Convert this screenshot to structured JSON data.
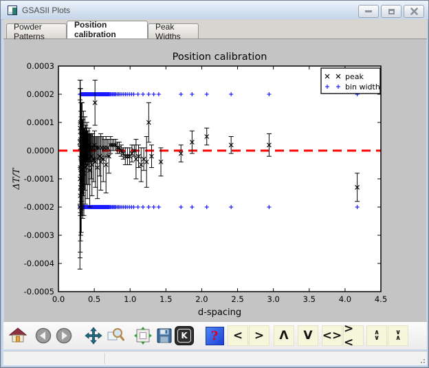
{
  "titlebar": {
    "title": "GSASII Plots",
    "icon": "gsasii-plot-icon",
    "buttons": [
      {
        "name": "minimize"
      },
      {
        "name": "maximize"
      },
      {
        "name": "close"
      }
    ]
  },
  "tabs": [
    {
      "label": "Powder Patterns",
      "active": false
    },
    {
      "label": "Position calibration",
      "active": true
    },
    {
      "label": "Peak Widths",
      "active": false
    }
  ],
  "colors": {
    "figure_bg": "#c4c4c4",
    "plot_bg": "#ffffff",
    "zero_line_red": "#ff0000",
    "bin_width_blue": "#1a1aff",
    "peak_black": "#000000",
    "arrow_button_bg": "#f6f6da"
  },
  "chart_data": {
    "type": "scatter",
    "title": "Position calibration",
    "xlabel": "d-spacing",
    "ylabel": "ΔT/T",
    "xlim": [
      0.0,
      4.5
    ],
    "ylim": [
      -0.0005,
      0.0003
    ],
    "x_ticks": [
      "0.0",
      "0.5",
      "1.0",
      "1.5",
      "2.0",
      "2.5",
      "3.0",
      "3.5",
      "4.0",
      "4.5"
    ],
    "y_ticks": [
      "0.0003",
      "0.0002",
      "0.0001",
      "0.0000",
      "-0.0001",
      "-0.0002",
      "-0.0003",
      "-0.0004",
      "-0.0005"
    ],
    "grid": false,
    "legend": {
      "position": "upper right",
      "entries": [
        {
          "label": "peak",
          "marker": "x",
          "color": "#000000"
        },
        {
          "label": "bin width",
          "marker": "+",
          "color": "#1a1aff"
        }
      ]
    },
    "zero_line": {
      "y": 0.0,
      "color": "#ff0000",
      "style": "dashed",
      "width": 3
    },
    "series": [
      {
        "name": "peak",
        "marker": "x",
        "color": "#000000",
        "format": "[d-spacing, delta_T_over_T, error]",
        "points": [
          [
            0.3,
            -0.0002,
            0.00022
          ],
          [
            0.301,
            3e-05,
            0.00022
          ],
          [
            0.302,
            -0.0001,
            0.00028
          ],
          [
            0.303,
            8e-05,
            0.00014
          ],
          [
            0.304,
            -0.00016,
            0.0002
          ],
          [
            0.305,
            1e-05,
            0.00024
          ],
          [
            0.306,
            -6e-05,
            0.00016
          ],
          [
            0.307,
            0.0001,
            0.00012
          ],
          [
            0.308,
            -0.00013,
            0.00019
          ],
          [
            0.31,
            4e-05,
            0.00018
          ],
          [
            0.312,
            -8e-05,
            0.00022
          ],
          [
            0.314,
            7e-05,
            0.0001
          ],
          [
            0.316,
            -3e-05,
            0.00015
          ],
          [
            0.318,
            -0.00011,
            0.00018
          ],
          [
            0.32,
            5e-05,
            0.00012
          ],
          [
            0.322,
            -5e-05,
            0.00016
          ],
          [
            0.325,
            2e-05,
            9e-05
          ],
          [
            0.328,
            -9e-05,
            0.00014
          ],
          [
            0.331,
            6e-05,
            0.00011
          ],
          [
            0.334,
            -2e-05,
            0.00013
          ],
          [
            0.338,
            -7e-05,
            0.00017
          ],
          [
            0.342,
            3e-05,
            8e-05
          ],
          [
            0.346,
            -4e-05,
            0.00012
          ],
          [
            0.35,
            5e-05,
            9e-05
          ],
          [
            0.355,
            -8e-05,
            0.00015
          ],
          [
            0.36,
            1e-05,
            7e-05
          ],
          [
            0.365,
            -3e-05,
            0.00011
          ],
          [
            0.37,
            4e-05,
            8e-05
          ],
          [
            0.376,
            -6e-05,
            0.00013
          ],
          [
            0.382,
            2e-05,
            7e-05
          ],
          [
            0.389,
            -2e-05,
            0.0001
          ],
          [
            0.396,
            3e-05,
            7e-05
          ],
          [
            0.403,
            -5e-05,
            0.00012
          ],
          [
            0.411,
            1e-05,
            6e-05
          ],
          [
            0.419,
            -3e-05,
            9e-05
          ],
          [
            0.428,
            2e-05,
            6e-05
          ],
          [
            0.437,
            -7e-05,
            0.00013
          ],
          [
            0.447,
            1e-05,
            5e-05
          ],
          [
            0.457,
            -2e-05,
            8e-05
          ],
          [
            0.468,
            -5e-05,
            0.00011
          ],
          [
            0.479,
            1e-05,
            5e-05
          ],
          [
            0.491,
            -3e-05,
            8e-05
          ],
          [
            0.503,
            2e-05,
            5e-05
          ],
          [
            0.51,
            0.00017,
            8e-05
          ],
          [
            0.516,
            -4e-05,
            9e-05
          ],
          [
            0.53,
            1e-05,
            4e-05
          ],
          [
            0.544,
            -6e-05,
            0.00011
          ],
          [
            0.559,
            1e-05,
            4e-05
          ],
          [
            0.575,
            -2e-05,
            7e-05
          ],
          [
            0.591,
            -4e-05,
            0.0001
          ],
          [
            0.608,
            1e-05,
            4e-05
          ],
          [
            0.626,
            -3e-05,
            8e-05
          ],
          [
            0.645,
            1e-05,
            3e-05
          ],
          [
            0.664,
            -5e-05,
            0.0001
          ],
          [
            0.684,
            1e-05,
            3e-05
          ],
          [
            0.705,
            -2e-05,
            6e-05
          ],
          [
            0.727,
            2e-05,
            3e-05
          ],
          [
            0.75,
            2e-05,
            2e-05
          ],
          [
            0.773,
            2e-05,
            2e-05
          ],
          [
            0.798,
            2e-05,
            2e-05
          ],
          [
            0.823,
            1e-05,
            2e-05
          ],
          [
            0.849,
            1e-05,
            2e-05
          ],
          [
            0.876,
            0.0,
            2e-05
          ],
          [
            0.904,
            -1e-05,
            2e-05
          ],
          [
            0.933,
            -2e-05,
            3e-05
          ],
          [
            0.963,
            -2e-05,
            3e-05
          ],
          [
            0.994,
            -2e-05,
            3e-05
          ],
          [
            1.026,
            -1e-05,
            3e-05
          ],
          [
            1.059,
            0.0,
            2e-05
          ],
          [
            1.083,
            -3e-05,
            7e-05
          ],
          [
            1.118,
            -2e-05,
            4e-05
          ],
          [
            1.154,
            -5e-05,
            6e-05
          ],
          [
            1.191,
            -3e-05,
            4e-05
          ],
          [
            1.23,
            -4e-05,
            9e-05
          ],
          [
            1.26,
            0.0001,
            7e-05
          ],
          [
            1.3,
            -2e-05,
            4e-05
          ],
          [
            1.43,
            -4e-05,
            5e-05
          ],
          [
            1.71,
            -1e-05,
            3e-05
          ],
          [
            1.865,
            3e-05,
            4e-05
          ],
          [
            2.07,
            5e-05,
            3e-05
          ],
          [
            2.41,
            2e-05,
            3e-05
          ],
          [
            2.94,
            2e-05,
            4e-05
          ],
          [
            4.17,
            -0.00013,
            5e-05
          ]
        ]
      },
      {
        "name": "bin width",
        "marker": "+",
        "color": "#1a1aff",
        "y_levels": [
          0.0002,
          -0.0002
        ],
        "x_dense": {
          "start": 0.3,
          "ratio": 1.011,
          "count": 80
        },
        "x_sparse": [
          0.725,
          0.74,
          0.755,
          0.77,
          0.785,
          0.8,
          0.82,
          0.84,
          0.86,
          0.885,
          0.91,
          0.935,
          0.96,
          0.99,
          1.02,
          1.05,
          1.11,
          1.18,
          1.26,
          1.33,
          1.4,
          1.71,
          1.865,
          2.07,
          2.41,
          2.94,
          4.17
        ]
      }
    ]
  },
  "toolbar": {
    "buttons": [
      {
        "name": "home",
        "icon": "home-icon"
      },
      {
        "name": "back",
        "icon": "back-icon"
      },
      {
        "name": "forward",
        "icon": "forward-icon"
      },
      {
        "name": "pan",
        "icon": "pan-icon"
      },
      {
        "name": "zoom-rect",
        "icon": "zoom-rect-icon"
      },
      {
        "name": "subplots",
        "icon": "subplots-icon"
      },
      {
        "name": "save",
        "icon": "save-icon"
      },
      {
        "name": "key-press",
        "icon": "key-k-icon",
        "label": "K"
      },
      {
        "name": "help",
        "icon": "help-icon",
        "label": "?"
      },
      {
        "name": "shift-left",
        "label": "<"
      },
      {
        "name": "shift-right",
        "label": ">"
      },
      {
        "name": "shift-up",
        "label": "Λ"
      },
      {
        "name": "shift-down",
        "label": "V"
      },
      {
        "name": "expand-x",
        "label": "<>"
      },
      {
        "name": "shrink-x",
        "label": "><"
      },
      {
        "name": "expand-y",
        "label": "∧\n∨"
      },
      {
        "name": "shrink-y",
        "label": "∨\n∧"
      }
    ]
  },
  "statusbar": {
    "fields": [
      "",
      ""
    ]
  }
}
